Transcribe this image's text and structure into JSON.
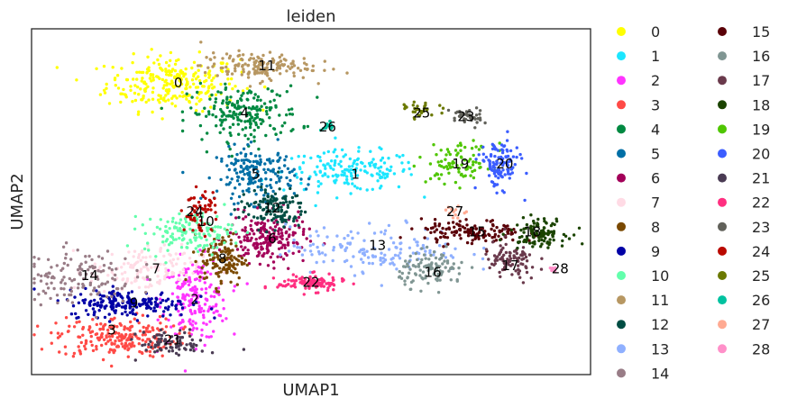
{
  "chart_data": {
    "type": "scatter",
    "title": "leiden",
    "xlabel": "UMAP1",
    "ylabel": "UMAP2",
    "xlim": [
      0,
      100
    ],
    "ylim": [
      0,
      100
    ],
    "grid": false,
    "legend_placement": "right, outside plot, two columns",
    "clusters": [
      {
        "label": "0",
        "color": "#ffff00",
        "x": 25,
        "y": 85,
        "sx": 6,
        "sy": 4,
        "n": 260,
        "label_x": 26,
        "label_y": 85
      },
      {
        "label": "1",
        "color": "#1ce6ff",
        "x": 57,
        "y": 59,
        "sx": 6,
        "sy": 3,
        "n": 170,
        "label_x": 58,
        "label_y": 58
      },
      {
        "label": "2",
        "color": "#ff34ff",
        "x": 29,
        "y": 21,
        "sx": 3,
        "sy": 6,
        "n": 200,
        "label_x": 29,
        "label_y": 21
      },
      {
        "label": "3",
        "color": "#ff4a46",
        "x": 15,
        "y": 10,
        "sx": 5.5,
        "sy": 3,
        "n": 230,
        "label_x": 14,
        "label_y": 12
      },
      {
        "label": "4",
        "color": "#008941",
        "x": 38,
        "y": 76,
        "sx": 5,
        "sy": 4,
        "n": 200,
        "label_x": 38,
        "label_y": 76
      },
      {
        "label": "5",
        "color": "#006fa6",
        "x": 40,
        "y": 58,
        "sx": 3.5,
        "sy": 4,
        "n": 180,
        "label_x": 40,
        "label_y": 58
      },
      {
        "label": "6",
        "color": "#a30059",
        "x": 42,
        "y": 39,
        "sx": 3.5,
        "sy": 3.5,
        "n": 200,
        "label_x": 43,
        "label_y": 39
      },
      {
        "label": "7",
        "color": "#ffdbe5",
        "x": 20,
        "y": 30,
        "sx": 5,
        "sy": 3.5,
        "n": 140,
        "label_x": 22,
        "label_y": 30
      },
      {
        "label": "8",
        "color": "#7a4900",
        "x": 34,
        "y": 33,
        "sx": 2,
        "sy": 4,
        "n": 130,
        "label_x": 34,
        "label_y": 33
      },
      {
        "label": "9",
        "color": "#0000a6",
        "x": 17,
        "y": 20,
        "sx": 5.5,
        "sy": 2,
        "n": 200,
        "label_x": 18,
        "label_y": 20
      },
      {
        "label": "10",
        "color": "#63ffac",
        "x": 28,
        "y": 41,
        "sx": 4,
        "sy": 3,
        "n": 140,
        "label_x": 31,
        "label_y": 44
      },
      {
        "label": "11",
        "color": "#b79762",
        "x": 40,
        "y": 90,
        "sx": 5,
        "sy": 2,
        "n": 150,
        "label_x": 42,
        "label_y": 90
      },
      {
        "label": "12",
        "color": "#004d43",
        "x": 43,
        "y": 48,
        "sx": 3,
        "sy": 3,
        "n": 120,
        "label_x": 43,
        "label_y": 48
      },
      {
        "label": "13",
        "color": "#8fb0ff",
        "x": 62,
        "y": 36,
        "sx": 8,
        "sy": 3.5,
        "n": 150,
        "label_x": 62,
        "label_y": 37
      },
      {
        "label": "14",
        "color": "#997d87",
        "x": 8,
        "y": 28,
        "sx": 5,
        "sy": 4,
        "n": 130,
        "label_x": 10,
        "label_y": 28
      },
      {
        "label": "15",
        "color": "#5a0007",
        "x": 79,
        "y": 41,
        "sx": 4.5,
        "sy": 1.8,
        "n": 140,
        "label_x": 80,
        "label_y": 41
      },
      {
        "label": "16",
        "color": "#809693",
        "x": 72,
        "y": 30,
        "sx": 3,
        "sy": 2.5,
        "n": 110,
        "label_x": 72,
        "label_y": 29
      },
      {
        "label": "17",
        "color": "#6a3a4c",
        "x": 86,
        "y": 32,
        "sx": 2.5,
        "sy": 3,
        "n": 90,
        "label_x": 86,
        "label_y": 31
      },
      {
        "label": "18",
        "color": "#1b4400",
        "x": 91,
        "y": 41,
        "sx": 2.5,
        "sy": 2,
        "n": 110,
        "label_x": 90,
        "label_y": 41
      },
      {
        "label": "19",
        "color": "#4fc601",
        "x": 77,
        "y": 61,
        "sx": 3,
        "sy": 3,
        "n": 90,
        "label_x": 77,
        "label_y": 61
      },
      {
        "label": "20",
        "color": "#3b5dff",
        "x": 84,
        "y": 61,
        "sx": 1.8,
        "sy": 3.5,
        "n": 120,
        "label_x": 85,
        "label_y": 61
      },
      {
        "label": "21",
        "color": "#4a3b53",
        "x": 25,
        "y": 8,
        "sx": 3,
        "sy": 1.8,
        "n": 80,
        "label_x": 25,
        "label_y": 9
      },
      {
        "label": "22",
        "color": "#ff2f80",
        "x": 50,
        "y": 26,
        "sx": 3,
        "sy": 1.2,
        "n": 110,
        "label_x": 50,
        "label_y": 26
      },
      {
        "label": "23",
        "color": "#61615a",
        "x": 78,
        "y": 75,
        "sx": 1.5,
        "sy": 1.5,
        "n": 40,
        "label_x": 78,
        "label_y": 75
      },
      {
        "label": "24",
        "color": "#ba0900",
        "x": 30,
        "y": 47,
        "sx": 1.5,
        "sy": 3,
        "n": 60,
        "label_x": 29,
        "label_y": 47
      },
      {
        "label": "25",
        "color": "#6b7900",
        "x": 70,
        "y": 77,
        "sx": 1.5,
        "sy": 1.2,
        "n": 30,
        "label_x": 70,
        "label_y": 76
      },
      {
        "label": "26",
        "color": "#00c2a0",
        "x": 53,
        "y": 72,
        "sx": 0.6,
        "sy": 0.8,
        "n": 15,
        "label_x": 53,
        "label_y": 72
      },
      {
        "label": "27",
        "color": "#ffaa92",
        "x": 76,
        "y": 47,
        "sx": 1,
        "sy": 0.8,
        "n": 12,
        "label_x": 76,
        "label_y": 47
      },
      {
        "label": "28",
        "color": "#ff90c9",
        "x": 94,
        "y": 30,
        "sx": 0.5,
        "sy": 0.5,
        "n": 6,
        "label_x": 95,
        "label_y": 30
      }
    ]
  }
}
